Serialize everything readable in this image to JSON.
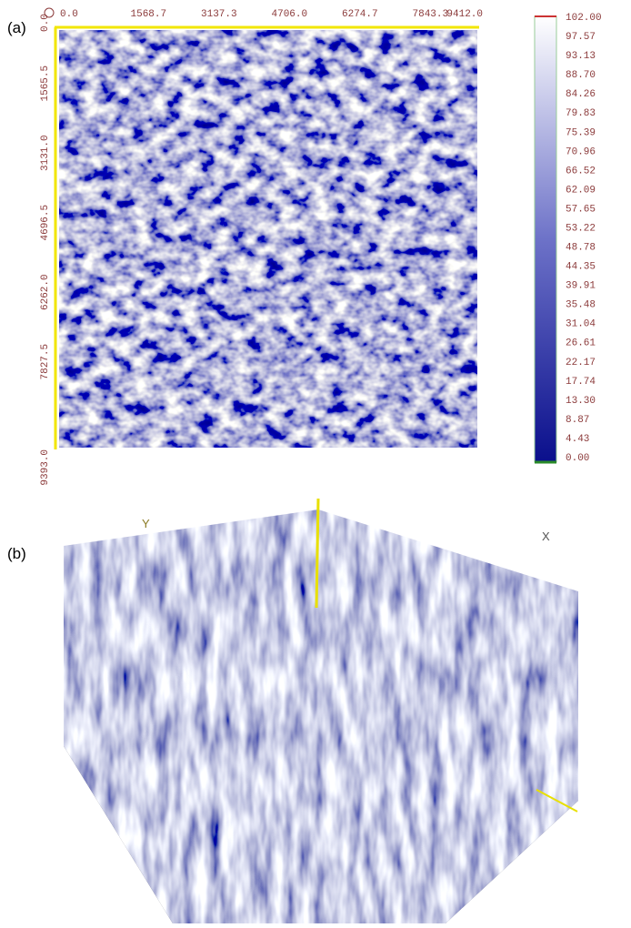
{
  "panel_a": {
    "label": "(a)",
    "x_ticks": [
      "0.0",
      "1568.7",
      "3137.3",
      "4706.0",
      "6274.7",
      "7843.3",
      "9412.0"
    ],
    "y_ticks": [
      "0.0",
      "1565.5",
      "3131.0",
      "4696.5",
      "6262.0",
      "7827.5",
      "9393.0"
    ],
    "colorbar_ticks": [
      "102.00",
      "97.57",
      "93.13",
      "88.70",
      "84.26",
      "79.83",
      "75.39",
      "70.96",
      "66.52",
      "62.09",
      "57.65",
      "53.22",
      "48.78",
      "44.35",
      "39.91",
      "35.48",
      "31.04",
      "26.61",
      "22.17",
      "17.74",
      "13.30",
      "8.87",
      "4.43",
      "0.00"
    ]
  },
  "panel_b": {
    "label": "(b)",
    "axis_labels": [
      "Y",
      "X"
    ]
  }
}
